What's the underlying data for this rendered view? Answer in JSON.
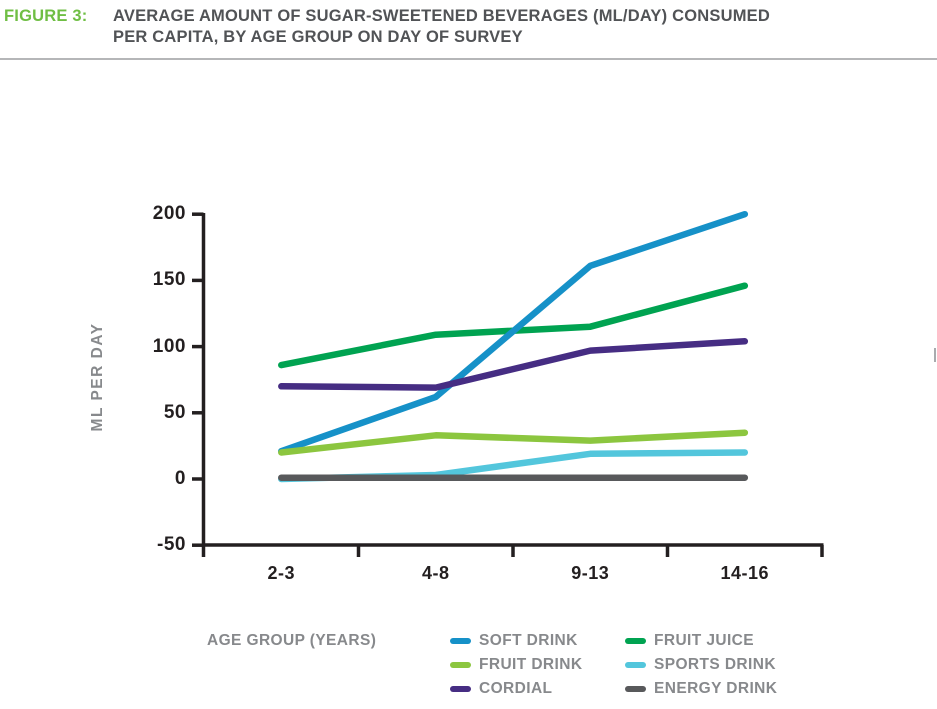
{
  "header": {
    "figure_label": "FIGURE 3:",
    "title_line1": "AVERAGE AMOUNT OF SUGAR-SWEETENED BEVERAGES (ML/DAY) CONSUMED",
    "title_line2": "PER CAPITA, BY AGE GROUP ON DAY OF SURVEY"
  },
  "colors": {
    "figure_label_green": "#6fbe44",
    "title_text": "#515356",
    "axis_text": "#231f20",
    "muted_gray_text": "#87898c",
    "axis_line": "#231f20",
    "divider": "#b5b6b8"
  },
  "chart_data": {
    "type": "line",
    "title": "AVERAGE AMOUNT OF SUGAR-SWEETENED BEVERAGES (ML/DAY) CONSUMED PER CAPITA, BY AGE GROUP ON DAY OF SURVEY",
    "categories": [
      "2-3",
      "4-8",
      "9-13",
      "14-16"
    ],
    "xlabel": "AGE GROUP (YEARS)",
    "ylabel": "ML PER DAY",
    "ylim": [
      -50,
      200
    ],
    "yticks": [
      200,
      150,
      100,
      50,
      0,
      -50
    ],
    "grid": false,
    "legend_position": "bottom",
    "series": [
      {
        "name": "SOFT DRINK",
        "color": "#1691c8",
        "values": [
          21,
          62,
          161,
          200
        ]
      },
      {
        "name": "FRUIT JUICE",
        "color": "#00a351",
        "values": [
          86,
          109,
          115,
          146
        ]
      },
      {
        "name": "FRUIT DRINK",
        "color": "#8cc63f",
        "values": [
          20,
          33,
          29,
          35
        ]
      },
      {
        "name": "SPORTS DRINK",
        "color": "#53c6dc",
        "values": [
          0,
          3,
          19,
          20
        ]
      },
      {
        "name": "CORDIAL",
        "color": "#462d83",
        "values": [
          70,
          69,
          97,
          104
        ]
      },
      {
        "name": "ENERGY DRINK",
        "color": "#58595b",
        "values": [
          1,
          1,
          1,
          1
        ]
      }
    ],
    "draw_order": [
      "FRUIT JUICE",
      "SOFT DRINK",
      "FRUIT DRINK",
      "SPORTS DRINK",
      "ENERGY DRINK",
      "CORDIAL"
    ],
    "legend_columns": [
      [
        "SOFT DRINK",
        "FRUIT DRINK",
        "CORDIAL"
      ],
      [
        "FRUIT JUICE",
        "SPORTS DRINK",
        "ENERGY DRINK"
      ]
    ]
  }
}
